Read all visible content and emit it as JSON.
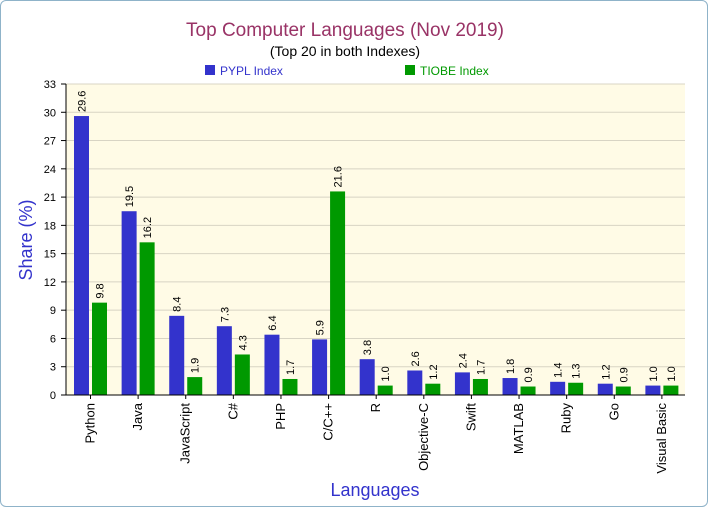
{
  "chart_data": {
    "type": "bar",
    "title": "Top Computer Languages (Nov 2019)",
    "subtitle": "(Top 20 in both Indexes)",
    "xlabel": "Languages",
    "ylabel": "Share (%)",
    "ylim": [
      0,
      33
    ],
    "yticks": [
      0,
      3,
      6,
      9,
      12,
      15,
      18,
      21,
      24,
      27,
      30,
      33
    ],
    "categories": [
      "Python",
      "Java",
      "JavaScript",
      "C#",
      "PHP",
      "C/C++",
      "R",
      "Objective-C",
      "Swift",
      "MATLAB",
      "Ruby",
      "Go",
      "Visual Basic"
    ],
    "series": [
      {
        "name": "PYPL Index",
        "color": "#3333cc",
        "values": [
          29.6,
          19.5,
          8.4,
          7.3,
          6.4,
          5.9,
          3.8,
          2.6,
          2.4,
          1.8,
          1.4,
          1.2,
          1.0
        ]
      },
      {
        "name": "TIOBE Index",
        "color": "#009900",
        "values": [
          9.8,
          16.2,
          1.9,
          4.3,
          1.7,
          21.6,
          1.0,
          1.2,
          1.7,
          0.9,
          1.3,
          0.9,
          1.0
        ]
      }
    ],
    "legend_position": "top",
    "grid": true,
    "plot_background": "#fffbe6",
    "title_color": "#993366",
    "axis_label_color": "#3333cc"
  }
}
